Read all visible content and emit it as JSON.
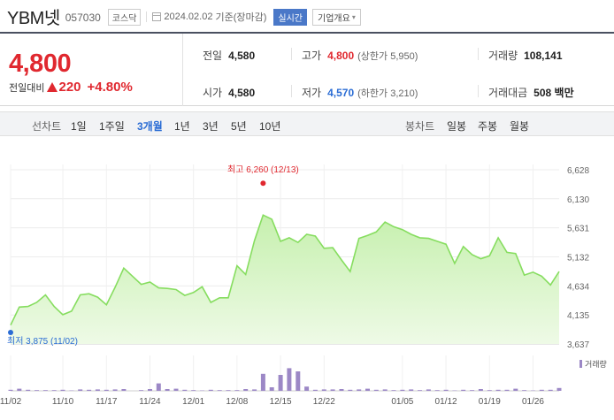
{
  "header": {
    "stock_name": "YBM넷",
    "stock_code": "057030",
    "market": "코스닥",
    "date": "2024.02.02",
    "date_suffix": "기준(장마감)",
    "realtime_label": "실시간",
    "company_label": "기업개요"
  },
  "quote": {
    "price": "4,800",
    "change_label": "전일대비",
    "change": "220",
    "change_pct": "+4.80%",
    "direction": "up",
    "prev_close_label": "전일",
    "prev_close": "4,580",
    "high_label": "고가",
    "high": "4,800",
    "upper_limit": "(상한가 5,950)",
    "volume_label": "거래량",
    "volume": "108,141",
    "open_label": "시가",
    "open": "4,580",
    "low_label": "저가",
    "low": "4,570",
    "lower_limit": "(하한가 3,210)",
    "amount_label": "거래대금",
    "amount": "508 백만"
  },
  "tabs": {
    "line_chart_label": "선차트",
    "periods": [
      "1일",
      "1주일",
      "3개월",
      "1년",
      "3년",
      "5년",
      "10년"
    ],
    "active_period": "3개월",
    "candle_chart_label": "봉차트",
    "candle_periods": [
      "일봉",
      "주봉",
      "월봉"
    ]
  },
  "colors": {
    "up": "#e0282f",
    "down": "#2a6cd4",
    "line": "#86dd5f",
    "area_top": "#c6f0ae",
    "area_bottom": "#eefae6",
    "volume_bar": "#9c88c6",
    "accent": "#4a78c8"
  },
  "chart_data": {
    "type": "area",
    "title": "",
    "y_ticks": [
      6628,
      6130,
      5631,
      5132,
      4634,
      4135,
      3637
    ],
    "y_tick_labels": [
      "6,628",
      "6,130",
      "5,631",
      "5,132",
      "4,634",
      "4,135",
      "3,637"
    ],
    "ylim": [
      3637,
      6628
    ],
    "x_tick_labels": [
      "11/02",
      "11/10",
      "11/17",
      "11/24",
      "12/01",
      "12/08",
      "12/15",
      "12/22",
      "01/05",
      "01/12",
      "01/19",
      "01/26"
    ],
    "x_tick_index": [
      0,
      6,
      11,
      16,
      21,
      26,
      31,
      36,
      45,
      50,
      55,
      60
    ],
    "max_annotation": {
      "label": "최고",
      "value": "6,260",
      "date": "(12/13)",
      "index": 29
    },
    "min_annotation": {
      "label": "최저",
      "value": "3,875",
      "date": "(11/02)",
      "index": 0
    },
    "volume_legend": "거래량",
    "series": [
      {
        "values": [
          3960,
          4270,
          4280,
          4350,
          4480,
          4280,
          4140,
          4200,
          4480,
          4500,
          4440,
          4310,
          4610,
          4940,
          4800,
          4660,
          4700,
          4600,
          4590,
          4570,
          4470,
          4520,
          4620,
          4350,
          4430,
          4430,
          4980,
          4830,
          5410,
          5850,
          5780,
          5400,
          5460,
          5380,
          5520,
          5490,
          5280,
          5290,
          5080,
          4880,
          5450,
          5500,
          5560,
          5730,
          5650,
          5600,
          5520,
          5460,
          5450,
          5400,
          5350,
          5020,
          5310,
          5170,
          5100,
          5150,
          5460,
          5210,
          5190,
          4820,
          4870,
          4800,
          4650,
          4880
        ]
      }
    ],
    "volume": {
      "max": 100,
      "values": [
        3,
        6,
        3,
        2,
        2,
        2,
        3,
        1,
        4,
        3,
        4,
        3,
        4,
        5,
        0,
        2,
        5,
        21,
        5,
        6,
        3,
        2,
        1,
        3,
        2,
        2,
        2,
        5,
        4,
        48,
        10,
        45,
        64,
        55,
        12,
        3,
        4,
        4,
        5,
        3,
        4,
        6,
        3,
        4,
        2,
        3,
        4,
        2,
        4,
        2,
        3,
        1,
        3,
        2,
        5,
        2,
        3,
        3,
        6,
        2,
        1,
        3,
        3,
        8
      ]
    }
  }
}
